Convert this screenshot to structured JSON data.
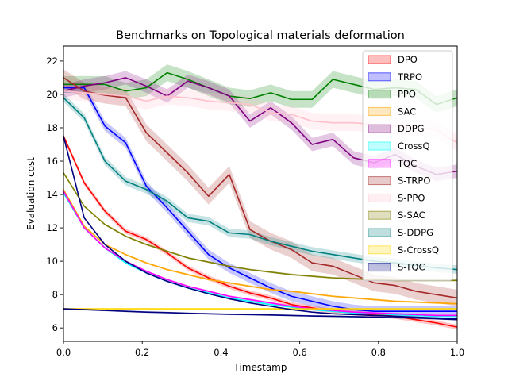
{
  "chart_data": {
    "type": "line",
    "title": "Benchmarks on Topological materials deformation",
    "xlabel": "Timestamp",
    "ylabel": "Evaluation cost",
    "xlim": [
      0,
      1
    ],
    "ylim": [
      5.2,
      22.9
    ],
    "xticks": [
      0,
      0.2,
      0.4,
      0.6,
      0.8,
      1
    ],
    "xtick_labels": [
      "0.0",
      "0.2",
      "0.4",
      "0.6",
      "0.8",
      "1.0"
    ],
    "yticks": [
      6,
      8,
      10,
      12,
      14,
      16,
      18,
      20,
      22
    ],
    "ytick_labels": [
      "6",
      "8",
      "10",
      "12",
      "14",
      "16",
      "18",
      "20",
      "22"
    ],
    "grid": false,
    "legend_position": "top-right",
    "x": [
      0,
      0.0526,
      0.1053,
      0.1579,
      0.2105,
      0.2632,
      0.3158,
      0.3684,
      0.4211,
      0.4737,
      0.5263,
      0.5789,
      0.6316,
      0.6842,
      0.7368,
      0.7895,
      0.8421,
      0.8947,
      0.9474,
      1.0
    ],
    "series": [
      {
        "name": "DPO",
        "color": "#ff0000",
        "band": 0.15,
        "values": [
          17.5,
          14.7,
          13.0,
          11.8,
          11.3,
          10.5,
          9.6,
          9.0,
          8.5,
          8.1,
          7.8,
          7.4,
          7.2,
          7.0,
          6.9,
          6.8,
          6.7,
          6.5,
          6.3,
          6.05
        ]
      },
      {
        "name": "TRPO",
        "color": "#0000ff",
        "band": 0.3,
        "values": [
          20.4,
          20.4,
          18.1,
          17.1,
          14.5,
          13.2,
          11.8,
          10.4,
          9.6,
          9.0,
          8.4,
          7.9,
          7.6,
          7.3,
          7.1,
          7.0,
          7.0,
          7.0,
          7.0,
          7.0
        ]
      },
      {
        "name": "PPO",
        "color": "#008000",
        "band": 0.5,
        "values": [
          20.6,
          20.6,
          20.6,
          20.2,
          20.4,
          21.3,
          20.9,
          20.4,
          19.9,
          19.75,
          20.1,
          19.7,
          19.7,
          20.9,
          20.6,
          20.3,
          20.4,
          20.3,
          19.4,
          19.8
        ]
      },
      {
        "name": "SAC",
        "color": "#ffa500",
        "band": 0.06,
        "values": [
          14.3,
          12.1,
          11.0,
          10.4,
          9.9,
          9.5,
          9.2,
          8.9,
          8.7,
          8.5,
          8.3,
          8.2,
          8.05,
          7.9,
          7.8,
          7.7,
          7.6,
          7.55,
          7.5,
          7.45
        ]
      },
      {
        "name": "DDPG",
        "color": "#800080",
        "band": 0.4,
        "values": [
          20.2,
          20.5,
          20.7,
          21.0,
          20.5,
          19.9,
          20.8,
          20.4,
          19.9,
          18.4,
          19.2,
          18.3,
          17.0,
          17.3,
          16.2,
          15.9,
          16.4,
          15.7,
          15.2,
          15.4
        ]
      },
      {
        "name": "CrossQ",
        "color": "#00ffff",
        "band": 0.06,
        "values": [
          14.1,
          12.0,
          10.8,
          9.9,
          9.3,
          8.8,
          8.4,
          8.1,
          7.8,
          7.6,
          7.4,
          7.25,
          7.1,
          7.0,
          6.9,
          6.85,
          6.8,
          6.75,
          6.7,
          6.7
        ]
      },
      {
        "name": "TQC",
        "color": "#ff00ff",
        "band": 0.06,
        "values": [
          14.2,
          12.0,
          10.8,
          10.0,
          9.4,
          8.9,
          8.5,
          8.2,
          7.9,
          7.7,
          7.5,
          7.3,
          7.15,
          7.05,
          6.95,
          6.9,
          6.85,
          6.8,
          6.75,
          6.75
        ]
      },
      {
        "name": "S-TRPO",
        "color": "#a52a2a",
        "band": 0.5,
        "values": [
          21.0,
          20.2,
          19.95,
          19.8,
          17.7,
          16.5,
          15.3,
          13.9,
          15.2,
          11.9,
          11.2,
          10.7,
          9.9,
          9.7,
          9.2,
          8.7,
          8.55,
          8.2,
          8.0,
          7.8
        ]
      },
      {
        "name": "S-PPO",
        "color": "#ffc0cb",
        "band": 0.5,
        "values": [
          20.2,
          20.1,
          20.0,
          19.9,
          19.6,
          19.9,
          19.8,
          19.6,
          19.5,
          19.4,
          18.9,
          18.8,
          18.4,
          18.3,
          18.3,
          18.2,
          18.1,
          18.0,
          17.9,
          17.1
        ]
      },
      {
        "name": "S-SAC",
        "color": "#808000",
        "band": 0.06,
        "values": [
          15.3,
          13.3,
          12.2,
          11.5,
          11.0,
          10.6,
          10.2,
          9.95,
          9.7,
          9.5,
          9.35,
          9.2,
          9.1,
          9.0,
          8.95,
          8.9,
          8.85,
          8.85,
          8.85,
          8.85
        ]
      },
      {
        "name": "S-DDPG",
        "color": "#008080",
        "band": 0.25,
        "values": [
          19.8,
          18.6,
          16.0,
          14.8,
          14.3,
          13.6,
          12.6,
          12.4,
          11.7,
          11.6,
          11.2,
          10.9,
          10.6,
          10.4,
          10.2,
          10.0,
          9.9,
          9.75,
          9.6,
          9.5
        ]
      },
      {
        "name": "S-CrossQ",
        "color": "#ffd700",
        "band": 0.04,
        "values": [
          7.15,
          7.15,
          7.15,
          7.15,
          7.15,
          7.15,
          7.15,
          7.15,
          7.15,
          7.15,
          7.15,
          7.15,
          7.15,
          7.15,
          7.15,
          7.15,
          7.15,
          7.15,
          7.15,
          7.15
        ]
      },
      {
        "name": "S-TQC",
        "color": "#000080",
        "band": 0.05,
        "values": [
          7.15,
          7.1,
          7.05,
          7.0,
          6.95,
          6.92,
          6.88,
          6.85,
          6.82,
          6.8,
          6.78,
          6.75,
          6.72,
          6.7,
          6.68,
          6.65,
          6.62,
          6.6,
          6.55,
          6.5
        ]
      },
      {
        "name": "",
        "color": "#000080",
        "band": 0.0,
        "values": [
          17.5,
          12.6,
          11.0,
          10.0,
          9.3,
          8.8,
          8.4,
          8.05,
          7.75,
          7.5,
          7.3,
          7.1,
          6.95,
          6.85,
          6.8,
          6.75,
          6.7,
          6.65,
          6.6,
          6.55
        ]
      }
    ]
  }
}
